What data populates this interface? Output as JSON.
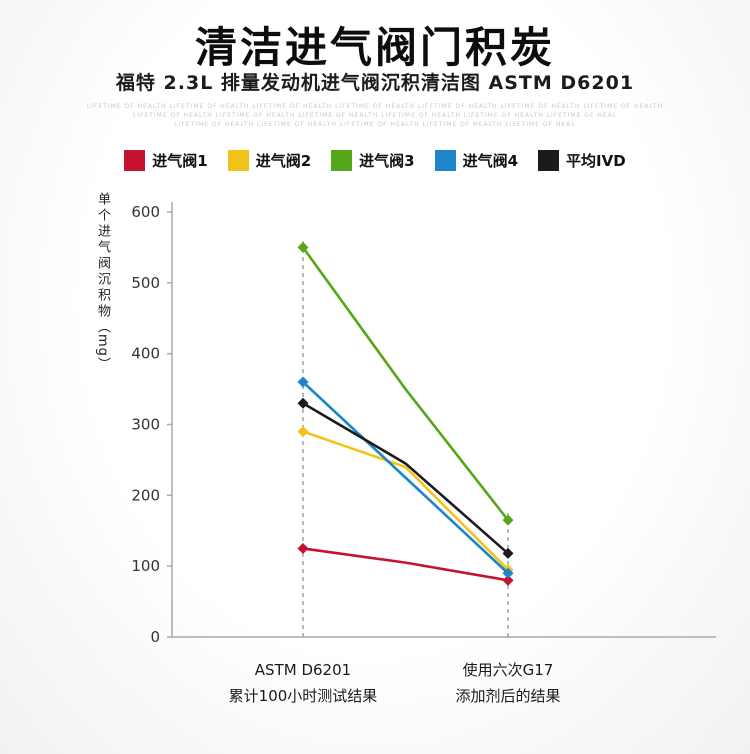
{
  "page": {
    "title": "清洁进气阀门积炭",
    "subtitle": "福特 2.3L 排量发动机进气阀沉积清洁图 ASTM D6201",
    "watermark_line1": "LIFETIME OF HEALTH LIFETIME OF HEALTH LIFETIME OF HEALTH LIFETIME OF HEALTH LIFETIME OF HEALTH LIFETIME OF HEALTH LIFETIME OF HEALTH",
    "watermark_line2": "LIFETIME OF HEALTH LIFETIME OF HEALTH LIFETIME OF HEALTH LIFETIME OF HEALTH LIFETIME OF HEALTH LIFETIME OF HEAL",
    "watermark_line3": "LIFETIME OF HEALTH LIFETIME OF HEALTH LIFETIME OF HEALTH LIFETIME OF HEALTH LIFETIME OF HEAL"
  },
  "legend": [
    {
      "label": "进气阀1",
      "color": "#c41230"
    },
    {
      "label": "进气阀2",
      "color": "#f2c318"
    },
    {
      "label": "进气阀3",
      "color": "#55a619"
    },
    {
      "label": "进气阀4",
      "color": "#1c86c8"
    },
    {
      "label": "平均IVD",
      "color": "#1b1b1b"
    }
  ],
  "chart_data": {
    "type": "line",
    "title": "福特 2.3L 排量发动机进气阀沉积清洁图 ASTM D6201",
    "ylabel": "单个进气阀沉积物",
    "ylabel_unit": "（mg）",
    "ylim": [
      0,
      600
    ],
    "yticks": [
      600,
      500,
      400,
      300,
      200,
      100,
      0
    ],
    "grid": false,
    "legend_position": "top",
    "categories": [
      {
        "line1": "ASTM D6201",
        "line2": "累计100小时测试结果"
      },
      {
        "line1": "使用六次G17",
        "line2": "添加剂后的结果"
      }
    ],
    "series": [
      {
        "name": "进气阀1",
        "color": "#c41230",
        "values": [
          125,
          80
        ],
        "points": [
          [
            0,
            125
          ],
          [
            0.5,
            105
          ],
          [
            1,
            80
          ]
        ]
      },
      {
        "name": "进气阀2",
        "color": "#f2c318",
        "values": [
          290,
          95
        ],
        "points": [
          [
            0,
            290
          ],
          [
            0.5,
            240
          ],
          [
            1,
            95
          ]
        ]
      },
      {
        "name": "进气阀3",
        "color": "#55a619",
        "values": [
          550,
          165
        ],
        "points": [
          [
            0,
            550
          ],
          [
            0.5,
            350
          ],
          [
            1,
            165
          ]
        ]
      },
      {
        "name": "进气阀4",
        "color": "#1c86c8",
        "values": [
          360,
          90
        ],
        "points": [
          [
            0,
            360
          ],
          [
            0.5,
            225
          ],
          [
            1,
            90
          ]
        ]
      },
      {
        "name": "平均IVD",
        "color": "#1b1b1b",
        "values": [
          330,
          118
        ],
        "points": [
          [
            0,
            330
          ],
          [
            0.5,
            245
          ],
          [
            1,
            118
          ]
        ]
      }
    ]
  }
}
